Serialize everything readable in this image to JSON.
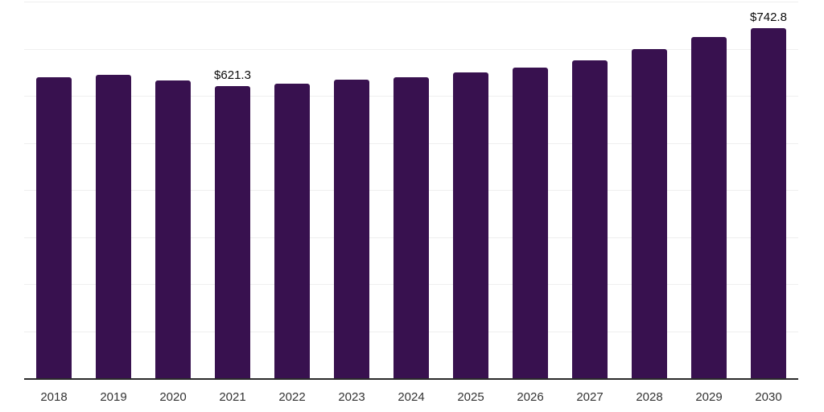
{
  "chart_data": {
    "type": "bar",
    "title": "",
    "xlabel": "",
    "ylabel": "",
    "categories": [
      "2018",
      "2019",
      "2020",
      "2021",
      "2022",
      "2023",
      "2024",
      "2025",
      "2026",
      "2027",
      "2028",
      "2029",
      "2030"
    ],
    "values": [
      640,
      645,
      632,
      621.3,
      626,
      635,
      640,
      649,
      659,
      675,
      700,
      724,
      742.8
    ],
    "data_labels": {
      "2021": "$621.3",
      "2030": "$742.8"
    },
    "ylim": [
      0,
      800
    ],
    "gridline_step": 100,
    "grid": true,
    "legend": "none",
    "y_axis_labels_visible": false,
    "colors": {
      "bar": "#38114F",
      "axis_line": "#2B2B2B",
      "gridline": "#EFEFEF",
      "tick_label": "#333333",
      "data_label": "#0A0A0A",
      "background": "#FFFFFF"
    }
  }
}
